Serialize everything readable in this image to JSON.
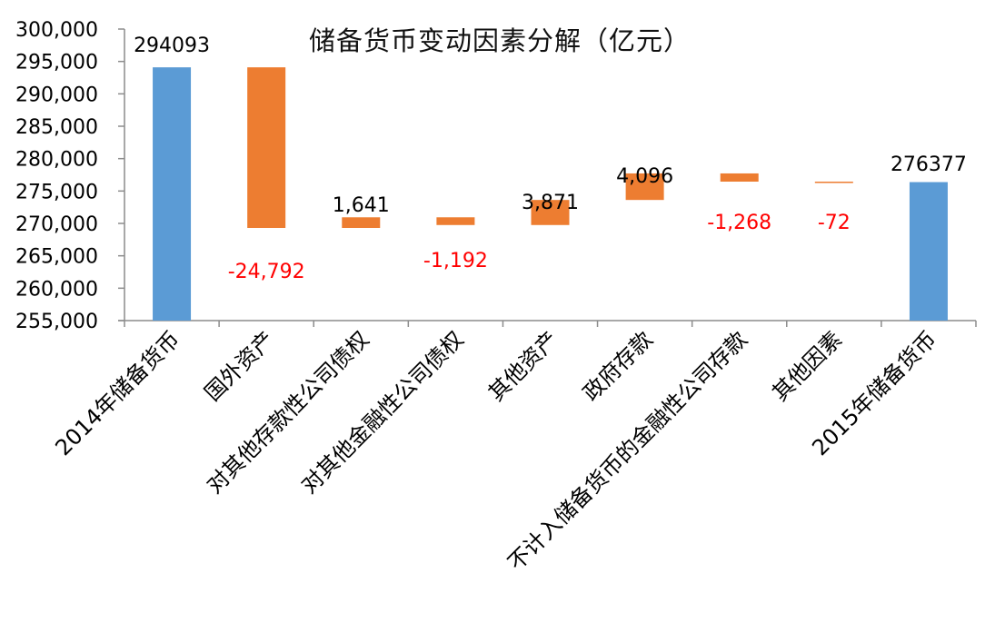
{
  "chart_data": {
    "type": "bar",
    "subtype": "waterfall",
    "title": "储备货币变动因素分解（亿元）",
    "xlabel": "",
    "ylabel": "",
    "ylim": [
      255000,
      300000
    ],
    "yticks": [
      255000,
      260000,
      265000,
      270000,
      275000,
      280000,
      285000,
      290000,
      295000,
      300000
    ],
    "ytick_labels": [
      "255,000",
      "260,000",
      "265,000",
      "270,000",
      "275,000",
      "280,000",
      "285,000",
      "290,000",
      "295,000",
      "300,000"
    ],
    "grid": false,
    "legend": null,
    "categories": [
      "2014年储备货币",
      "国外资产",
      "对其他存款性公司债权",
      "对其他金融性公司债权",
      "其他资产",
      "政府存款",
      "不计入储备货币的金融性公司存款",
      "其他因素",
      "2015年储备货币"
    ],
    "values": [
      294093,
      -24792,
      1641,
      -1192,
      3871,
      4096,
      -1268,
      -72,
      276377
    ],
    "bar_kind": [
      "total",
      "change",
      "change",
      "change",
      "change",
      "change",
      "change",
      "change",
      "total"
    ],
    "bar_bottom": [
      255000,
      269301,
      269301,
      269750,
      269750,
      273621,
      276449,
      276377,
      255000
    ],
    "bar_top": [
      294093,
      294093,
      270942,
      270942,
      273621,
      277717,
      277717,
      276449,
      276377
    ],
    "data_labels": [
      "294093",
      "-24,792",
      "1,641",
      "-1,192",
      "3,871",
      "4,096",
      "-1,268",
      "-72",
      "276377"
    ],
    "label_colors": [
      "#000000",
      "#ff0000",
      "#000000",
      "#ff0000",
      "#000000",
      "#000000",
      "#ff0000",
      "#ff0000",
      "#000000"
    ],
    "colors": {
      "total": "#5b9bd5",
      "change": "#ed7d31",
      "negative_label": "#ff0000",
      "positive_label": "#000000",
      "axis": "#8c8c8c"
    }
  }
}
